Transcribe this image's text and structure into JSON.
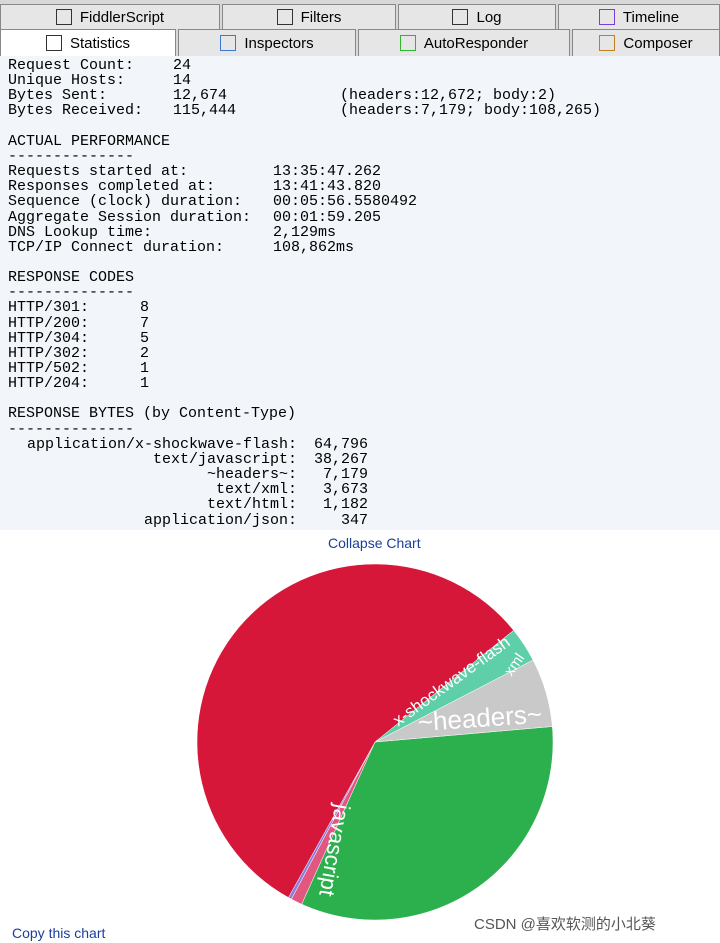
{
  "tabs": {
    "row1": [
      "FiddlerScript",
      "Filters",
      "Log",
      "Timeline"
    ],
    "row2": [
      "Statistics",
      "Inspectors",
      "AutoResponder",
      "Composer"
    ]
  },
  "summary": [
    [
      "Request Count:",
      "24"
    ],
    [
      "Unique Hosts:",
      "14"
    ],
    [
      "Bytes Sent:",
      "12,674",
      "(headers:12,672; body:2)"
    ],
    [
      "Bytes Received:",
      "115,444",
      "(headers:7,179; body:108,265)"
    ]
  ],
  "performance": {
    "title": "ACTUAL PERFORMANCE",
    "separator": "--------------",
    "rows": [
      [
        "Requests started at:",
        "13:35:47.262"
      ],
      [
        "Responses completed at:",
        "13:41:43.820"
      ],
      [
        "Sequence (clock) duration:",
        "00:05:56.5580492"
      ],
      [
        "Aggregate Session duration:",
        "00:01:59.205"
      ],
      [
        "DNS Lookup time:",
        "2,129ms"
      ],
      [
        "TCP/IP Connect duration:",
        "108,862ms"
      ]
    ]
  },
  "response_codes": {
    "title": "RESPONSE CODES",
    "separator": "--------------",
    "rows": [
      [
        "HTTP/301:",
        "8"
      ],
      [
        "HTTP/200:",
        "7"
      ],
      [
        "HTTP/304:",
        "5"
      ],
      [
        "HTTP/302:",
        "2"
      ],
      [
        "HTTP/502:",
        "1"
      ],
      [
        "HTTP/204:",
        "1"
      ]
    ]
  },
  "response_bytes": {
    "title": "RESPONSE BYTES (by Content-Type)",
    "separator": "--------------"
  },
  "chart_data": {
    "type": "pie",
    "categories": [
      "application/x-shockwave-flash:",
      "text/javascript:",
      "~headers~:",
      "text/xml:",
      "text/html:",
      "application/json:"
    ],
    "values": [
      64796,
      38267,
      7179,
      3673,
      1182,
      347
    ],
    "value_labels": [
      "64,796",
      "38,267",
      "7,179",
      "3,673",
      "1,182",
      "347"
    ],
    "slice_labels": [
      "x-shockwave-flash",
      "javascript",
      "~headers~",
      "xml",
      null,
      null
    ],
    "colors": [
      "#d6173a",
      "#2cb04d",
      "#c9c9c9",
      "#5fcfa9",
      "#e2577f",
      "#8a7fe0"
    ]
  },
  "links": {
    "collapse": "Collapse Chart",
    "copy": "Copy this chart"
  },
  "watermark": "CSDN @喜欢软测的小北葵"
}
